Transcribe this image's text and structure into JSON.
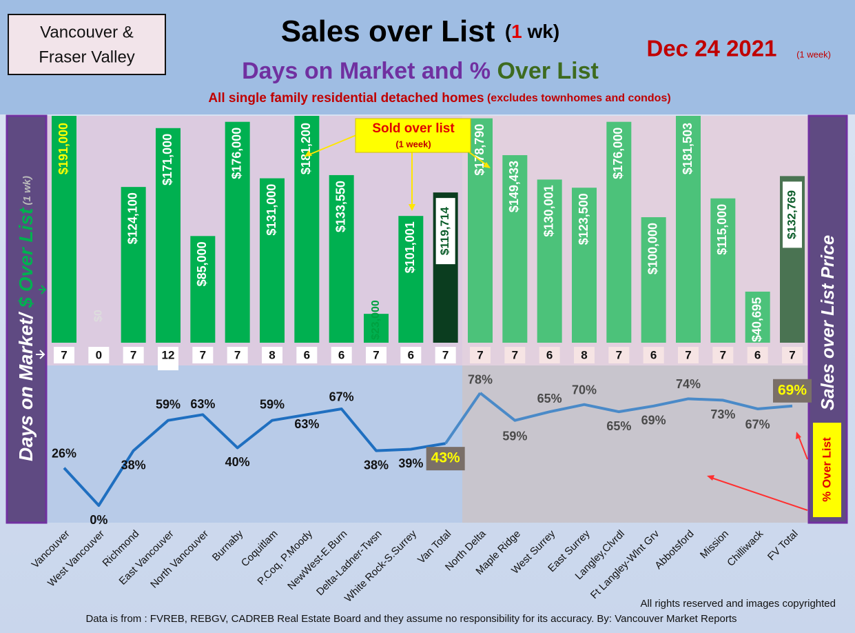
{
  "chart_data": {
    "type": "combo",
    "title": "Sales over List",
    "title_note": [
      "(",
      "1",
      " wk)"
    ],
    "subtitle": [
      "Days on Market and % ",
      "Over List"
    ],
    "description": "All single family residential detached homes",
    "description_note": " (excludes townhomes and condos)",
    "date": "Dec 24  2021",
    "date_note": "(1 week)",
    "region_box": [
      "Vancouver &",
      "Fraser Valley"
    ],
    "left_axis_label": [
      "Days on Market/ ",
      "$ Over List",
      " (1 wk)"
    ],
    "right_axis_label": "Sales over List Price",
    "callouts": {
      "sold_over_list": [
        "Sold over list",
        "(1 week)"
      ],
      "pct_over_list": "% Over List"
    },
    "footer": [
      "All rights reserved and  images copyrighted",
      "Data is from : FVREB, REBGV, CADREB Real Estate Board and they assume no responsibility for its accuracy. By: Vancouver Market Reports"
    ],
    "categories": [
      "Vancouver",
      "West Vancouver",
      "Richmond",
      "East Vancouver",
      "North Vancouver",
      "Burnaby",
      "Coquitlam",
      "P.Coq, P.Moody",
      "NewWest-E.Burn",
      "Delta-Ladner-Twsn",
      "White Rock-S.Surrey",
      "Van Total",
      "North Delta",
      "Maple Ridge",
      "West Surrey",
      "East Surrey",
      "Langley,Clvrdl",
      "Ft Langley-Wlnt Grv",
      "Abbotsford",
      "Mission",
      "Chilliwack",
      "FV Total"
    ],
    "bars": {
      "values": [
        191000,
        0,
        124100,
        171000,
        85000,
        176000,
        131000,
        181200,
        133550,
        23000,
        101001,
        119714,
        178790,
        149433,
        130001,
        123500,
        176000,
        100000,
        181503,
        115000,
        40695,
        132769
      ],
      "value_labels": [
        "$191,000",
        "$0",
        "$124,100",
        "$171,000",
        "$85,000",
        "$176,000",
        "$131,000",
        "$181,200",
        "$133,550",
        "$23,000",
        "$101,001",
        "$119,714",
        "$178,790",
        "$149,433",
        "$130,001",
        "$123,500",
        "$176,000",
        "$100,000",
        "$181,503",
        "$115,000",
        "$40,695",
        "$132,769"
      ],
      "colors": [
        "#00b050",
        "#00b050",
        "#00b050",
        "#00b050",
        "#00b050",
        "#00b050",
        "#00b050",
        "#00b050",
        "#00b050",
        "#00b050",
        "#00b050",
        "#0b3d1f",
        "#4cc27a",
        "#4cc27a",
        "#4cc27a",
        "#4cc27a",
        "#4cc27a",
        "#4cc27a",
        "#4cc27a",
        "#4cc27a",
        "#4cc27a",
        "#4a7352"
      ]
    },
    "days": {
      "values": [
        7,
        0,
        7,
        12,
        7,
        7,
        8,
        6,
        6,
        7,
        6,
        7,
        7,
        7,
        6,
        8,
        7,
        6,
        7,
        7,
        6,
        7
      ]
    },
    "pct": {
      "color": "#1f6fc0",
      "values": [
        26,
        0,
        38,
        59,
        63,
        40,
        59,
        63,
        67,
        38,
        39,
        43,
        78,
        59,
        65,
        70,
        65,
        69,
        74,
        73,
        67,
        69
      ],
      "value_labels": [
        "26%",
        "0%",
        "38%",
        "59%",
        "63%",
        "40%",
        "59%",
        "63%",
        "67%",
        "38%",
        "39%",
        "43%",
        "78%",
        "59%",
        "65%",
        "70%",
        "65%",
        "69%",
        "74%",
        "73%",
        "67%",
        "69%"
      ]
    }
  }
}
